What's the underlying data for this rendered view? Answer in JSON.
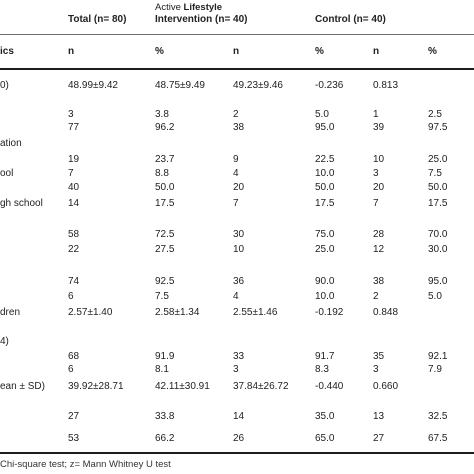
{
  "header": {
    "group_total": "Total (n= 80)",
    "group_active_prefix": "Active ",
    "group_active_bold": "Lifestyle",
    "group_active_line2": "Intervention (n= 40)",
    "group_control": "Control (n= 40)",
    "characteristics_fragment": "ics",
    "subheaders": [
      "n",
      "%",
      "n",
      "%",
      "n",
      "%"
    ]
  },
  "rows": [
    {
      "label": "0)",
      "cells": [
        "48.99±9.42",
        "48.75±9.49",
        "49.23±9.46",
        "-0.236",
        "0.813",
        ""
      ]
    },
    {
      "label": "",
      "cells": [
        "3",
        "3.8",
        "2",
        "5.0",
        "1",
        "2.5"
      ]
    },
    {
      "label": "",
      "cells": [
        "77",
        "96.2",
        "38",
        "95.0",
        "39",
        "97.5"
      ]
    },
    {
      "label": "ation",
      "cells": [
        "",
        "",
        "",
        "",
        "",
        ""
      ]
    },
    {
      "label": "",
      "cells": [
        "19",
        "23.7",
        "9",
        "22.5",
        "10",
        "25.0"
      ]
    },
    {
      "label": "ool",
      "cells": [
        "7",
        "8.8",
        "4",
        "10.0",
        "3",
        "7.5"
      ]
    },
    {
      "label": "",
      "cells": [
        "40",
        "50.0",
        "20",
        "50.0",
        "20",
        "50.0"
      ]
    },
    {
      "label": "gh school",
      "cells": [
        "14",
        "17.5",
        "7",
        "17.5",
        "7",
        "17.5"
      ]
    },
    {
      "label": "",
      "cells": [
        "",
        "",
        "",
        "",
        "",
        ""
      ]
    },
    {
      "label": "",
      "cells": [
        "58",
        "72.5",
        "30",
        "75.0",
        "28",
        "70.0"
      ]
    },
    {
      "label": "",
      "cells": [
        "22",
        "27.5",
        "10",
        "25.0",
        "12",
        "30.0"
      ]
    },
    {
      "label": "",
      "cells": [
        "74",
        "92.5",
        "36",
        "90.0",
        "38",
        "95.0"
      ]
    },
    {
      "label": "",
      "cells": [
        "6",
        "7.5",
        "4",
        "10.0",
        "2",
        "5.0"
      ]
    },
    {
      "label": "dren",
      "cells": [
        "2.57±1.40",
        "2.58±1.34",
        "2.55±1.46",
        "-0.192",
        "0.848",
        ""
      ]
    },
    {
      "label": "4)",
      "cells": [
        "",
        "",
        "",
        "",
        "",
        ""
      ]
    },
    {
      "label": "",
      "cells": [
        "68",
        "91.9",
        "33",
        "91.7",
        "35",
        "92.1"
      ]
    },
    {
      "label": "",
      "cells": [
        "6",
        "8.1",
        "3",
        "8.3",
        "3",
        "7.9"
      ]
    },
    {
      "label": "ean ± SD)",
      "cells": [
        "39.92±28.71",
        "42.11±30.91",
        "37.84±26.72",
        "-0.440",
        "0.660",
        ""
      ]
    },
    {
      "label": "",
      "cells": [
        "27",
        "33.8",
        "14",
        "35.0",
        "13",
        "32.5"
      ]
    },
    {
      "label": "",
      "cells": [
        "53",
        "66.2",
        "26",
        "65.0",
        "27",
        "67.5"
      ]
    }
  ],
  "footnote": "Chi-square test; z= Mann Whitney U test"
}
